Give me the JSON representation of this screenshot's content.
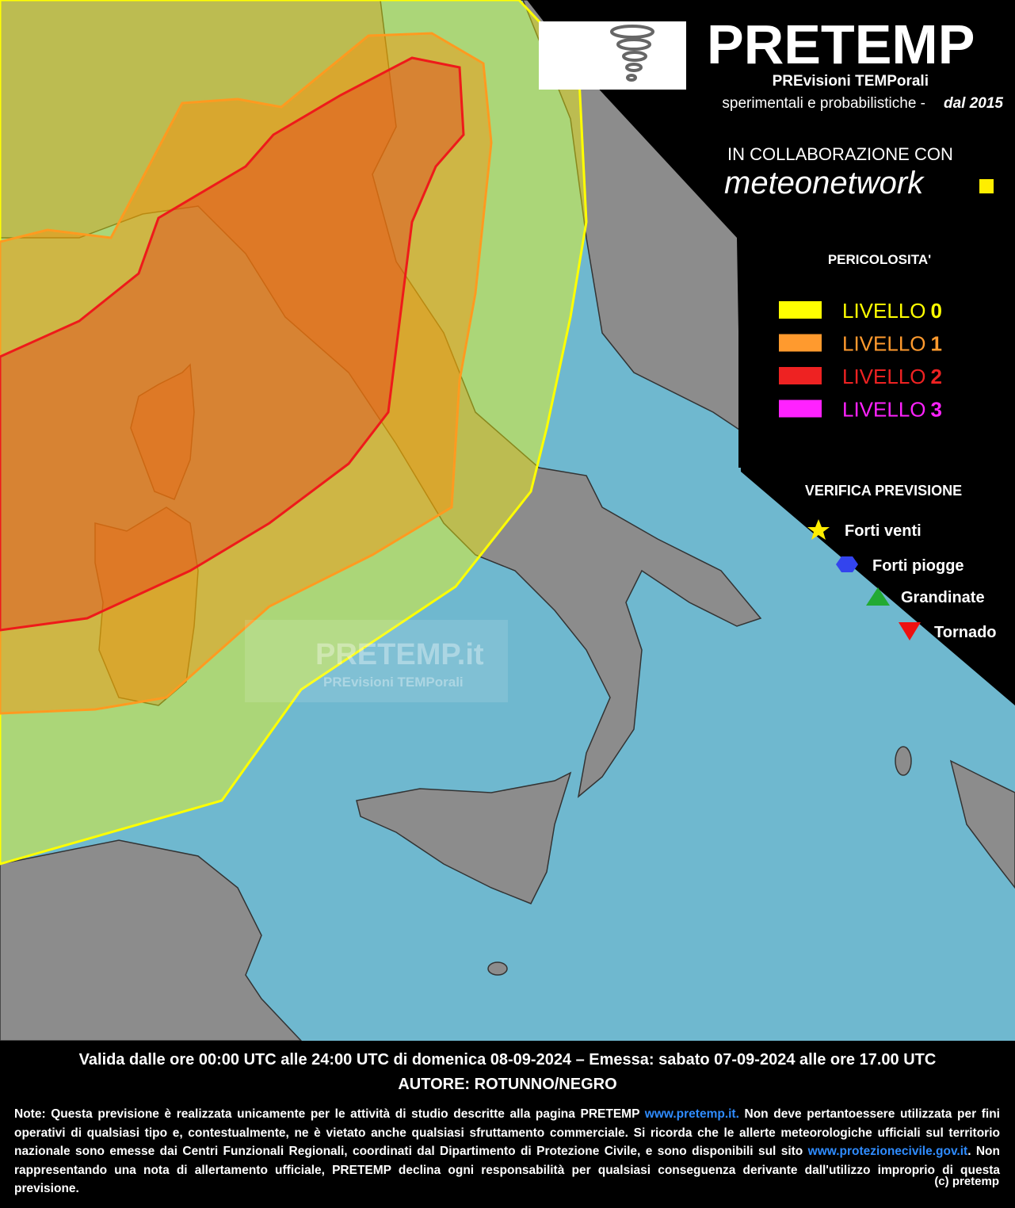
{
  "header": {
    "title": "PRETEMP",
    "subtitle": "PREvisioni TEMPorali",
    "tagline": "sperimentali e probabilistiche -",
    "since": "dal 2015",
    "collaboration": "IN COLLABORAZIONE CON",
    "partner": "meteonetwork"
  },
  "legend": {
    "title": "PERICOLOSITA'",
    "levels": [
      {
        "label": "LIVELLO",
        "level": "0",
        "color": "#ffff00"
      },
      {
        "label": "LIVELLO",
        "level": "1",
        "color": "#ff9a2e"
      },
      {
        "label": "LIVELLO",
        "level": "2",
        "color": "#ee2222"
      },
      {
        "label": "LIVELLO",
        "level": "3",
        "color": "#ff22ff"
      }
    ]
  },
  "verification": {
    "title": "VERIFICA PREVISIONE",
    "items": [
      "Forti venti",
      "Forti piogge",
      "Grandinate",
      "Tornado"
    ]
  },
  "watermark": {
    "title": "PRETEMP.it",
    "subtitle": "PREvisioni TEMPorali"
  },
  "footer": {
    "validity": "Valida dalle ore 00:00 UTC alle 24:00 UTC di domenica 08-09-2024 – Emessa: sabato 07-09-2024 alle ore 17.00 UTC",
    "author": "AUTORE: ROTUNNO/NEGRO",
    "note": [
      "Note: Questa previsione è realizzata unicamente per le attività di studio descritte alla pagina PRETEMP ",
      "www.pretemp.it.",
      " Non deve pertantoessere utilizzata per fini operativi di qualsiasi tipo e, contestualmente, ne è vietato anche qualsiasi sfruttamento commerciale. Si ricorda che le allerte meteorologiche ufficiali sul territorio nazionale sono emesse dai Centri Funzionali Regionali, coordinati dal Dipartimento di Protezione Civile, e sono disponibili sul sito ",
      "www.protezionecivile.gov.it",
      ". Non rappresentando una nota di allertamento ufficiale, PRETEMP declina ogni responsabilità per qualsiasi conseguenza derivante dall'utilizzo improprio di questa previsione."
    ],
    "copyright": "(c) pretemp"
  }
}
